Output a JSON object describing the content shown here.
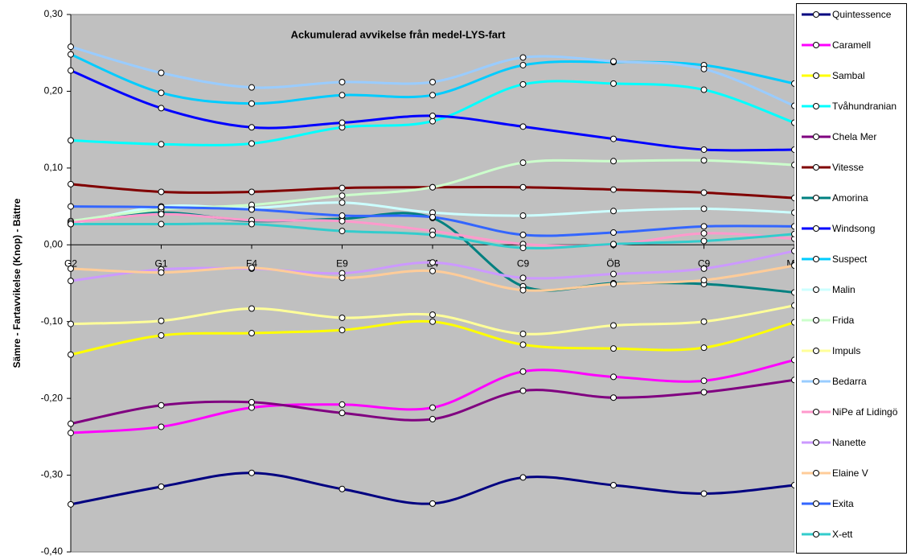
{
  "chart_data": {
    "type": "line",
    "title": "Ackumulerad avvikelse från medel-LYS-fart",
    "y_label": "Sämre  -  Fartavvikelse (Knop)  -  Bättre",
    "categories": [
      "G2",
      "G1",
      "F4",
      "E9",
      "E4",
      "C9",
      "ÖB",
      "C9",
      "Mål"
    ],
    "ylim": [
      -0.4,
      0.3
    ],
    "yticks": [
      {
        "value": -0.4,
        "label": "-0,40"
      },
      {
        "value": -0.3,
        "label": "-0,30"
      },
      {
        "value": -0.2,
        "label": "-0,20"
      },
      {
        "value": -0.1,
        "label": "-0,10"
      },
      {
        "value": 0,
        "label": "0,00"
      },
      {
        "value": 0.1,
        "label": "0,10"
      },
      {
        "value": 0.2,
        "label": "0,20"
      },
      {
        "value": 0.3,
        "label": "0,30"
      }
    ],
    "legend": "right",
    "series": [
      {
        "name": "Quintessence",
        "color": "#000080",
        "values": [
          -0.338,
          -0.315,
          -0.297,
          -0.318,
          -0.337,
          -0.303,
          -0.313,
          -0.324,
          -0.313
        ]
      },
      {
        "name": "Caramell",
        "color": "#ff00ff",
        "values": [
          -0.245,
          -0.237,
          -0.212,
          -0.208,
          -0.212,
          -0.165,
          -0.172,
          -0.177,
          -0.15
        ]
      },
      {
        "name": "Sambal",
        "color": "#ffff00",
        "values": [
          -0.143,
          -0.118,
          -0.115,
          -0.111,
          -0.1,
          -0.13,
          -0.135,
          -0.134,
          -0.101
        ]
      },
      {
        "name": "Tvåhundranian",
        "color": "#00ffff",
        "values": [
          0.136,
          0.131,
          0.132,
          0.153,
          0.161,
          0.209,
          0.21,
          0.202,
          0.159
        ]
      },
      {
        "name": "Chela Mer",
        "color": "#800080",
        "values": [
          -0.233,
          -0.209,
          -0.205,
          -0.219,
          -0.227,
          -0.19,
          -0.199,
          -0.192,
          -0.176
        ]
      },
      {
        "name": "Vitesse",
        "color": "#800000",
        "values": [
          0.079,
          0.069,
          0.069,
          0.074,
          0.075,
          0.075,
          0.072,
          0.068,
          0.061
        ]
      },
      {
        "name": "Amorina",
        "color": "#008080",
        "values": [
          0.029,
          0.042,
          0.031,
          0.034,
          0.035,
          -0.054,
          -0.05,
          -0.051,
          -0.062
        ]
      },
      {
        "name": "Windsong",
        "color": "#0000ff",
        "values": [
          0.227,
          0.178,
          0.153,
          0.159,
          0.168,
          0.154,
          0.138,
          0.124,
          0.124
        ]
      },
      {
        "name": "Suspect",
        "color": "#00ccff",
        "values": [
          0.248,
          0.198,
          0.184,
          0.195,
          0.195,
          0.234,
          0.238,
          0.234,
          0.21
        ]
      },
      {
        "name": "Malin",
        "color": "#ccffff",
        "values": [
          0.027,
          0.05,
          0.048,
          0.055,
          0.042,
          0.038,
          0.044,
          0.047,
          0.042
        ]
      },
      {
        "name": "Frida",
        "color": "#ccffcc",
        "values": [
          0.031,
          0.046,
          0.052,
          0.064,
          0.075,
          0.107,
          0.109,
          0.11,
          0.104
        ]
      },
      {
        "name": "Impuls",
        "color": "#ffff99",
        "values": [
          -0.103,
          -0.099,
          -0.083,
          -0.095,
          -0.091,
          -0.116,
          -0.105,
          -0.1,
          -0.079
        ]
      },
      {
        "name": "Bedarra",
        "color": "#99ccff",
        "values": [
          0.258,
          0.224,
          0.205,
          0.212,
          0.212,
          0.244,
          0.239,
          0.229,
          0.181
        ]
      },
      {
        "name": "NiPe af Lidingö",
        "color": "#ff99cc",
        "values": [
          0.029,
          0.04,
          0.032,
          0.031,
          0.018,
          0.001,
          0.0,
          0.015,
          0.008
        ]
      },
      {
        "name": "Nanette",
        "color": "#cc99ff",
        "values": [
          -0.047,
          -0.032,
          -0.031,
          -0.037,
          -0.023,
          -0.043,
          -0.038,
          -0.031,
          -0.008
        ]
      },
      {
        "name": "Elaine V",
        "color": "#ffcc99",
        "values": [
          -0.031,
          -0.036,
          -0.03,
          -0.043,
          -0.034,
          -0.059,
          -0.051,
          -0.046,
          -0.027
        ]
      },
      {
        "name": "Exita",
        "color": "#3366ff",
        "values": [
          0.05,
          0.049,
          0.046,
          0.038,
          0.036,
          0.013,
          0.016,
          0.024,
          0.024
        ]
      },
      {
        "name": "X-ett",
        "color": "#33cccc",
        "values": [
          0.027,
          0.027,
          0.027,
          0.018,
          0.013,
          -0.004,
          0.001,
          0.005,
          0.014
        ]
      }
    ]
  }
}
